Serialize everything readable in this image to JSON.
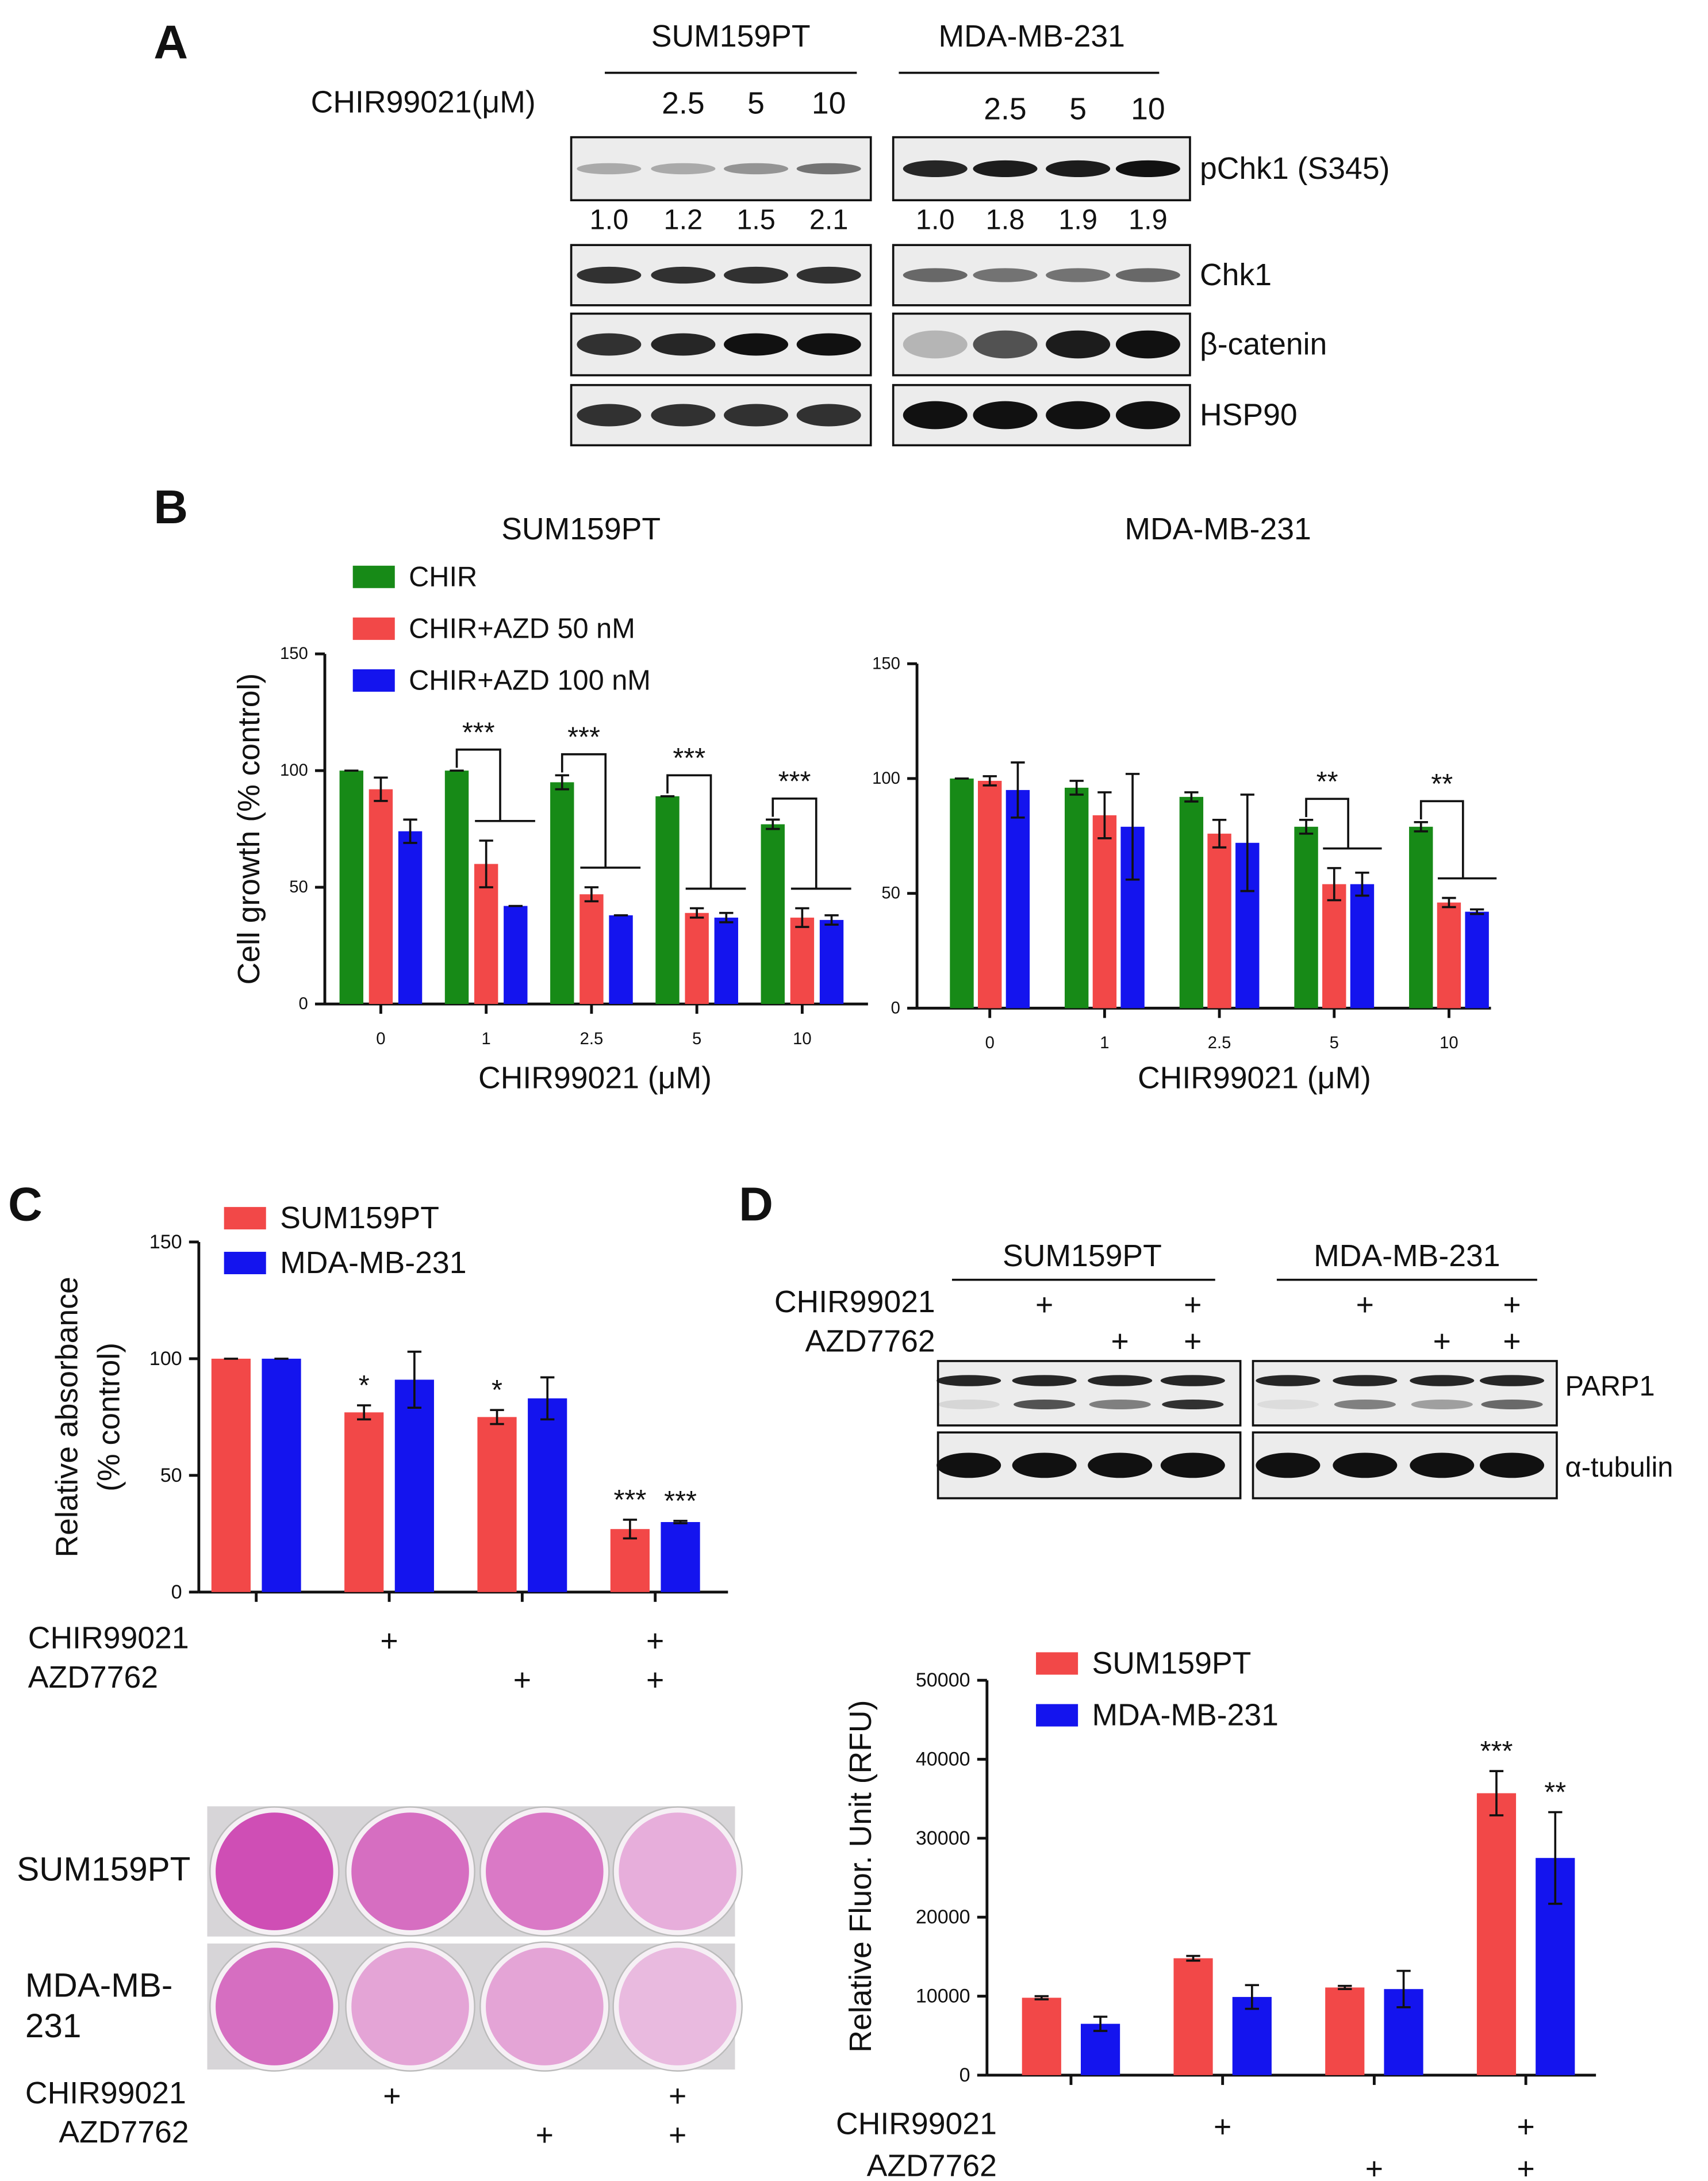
{
  "panel_labels": [
    "A",
    "B",
    "C",
    "D"
  ],
  "western_A": {
    "treatment_label": "CHIR99021(μM)",
    "cell_lines": [
      "SUM159PT",
      "MDA-MB-231"
    ],
    "doses": [
      "2.5",
      "5",
      "10"
    ],
    "rows": [
      "pChk1 (S345)",
      "Chk1",
      "β-catenin",
      "HSP90"
    ],
    "quantification": [
      [
        "1.0",
        "1.2",
        "1.5",
        "2.1"
      ],
      [
        "1.0",
        "1.8",
        "1.9",
        "1.9"
      ]
    ]
  },
  "chart_data": [
    {
      "type": "bar",
      "title": "SUM159PT",
      "xlabel": "CHIR99021 (μM)",
      "ylabel": [
        "Cell growth (% control)"
      ],
      "categories": [
        "0",
        "1",
        "2.5",
        "5",
        "10"
      ],
      "ylim": [
        0,
        150
      ],
      "yticks": [
        0,
        50,
        100,
        150
      ],
      "series": [
        {
          "name": "CHIR",
          "color": "#178a17",
          "values": [
            100,
            100,
            95,
            89,
            77
          ],
          "errors": [
            0,
            0,
            3,
            0,
            2
          ]
        },
        {
          "name": "CHIR+AZD 50 nM",
          "color": "#f24848",
          "values": [
            92,
            60,
            47,
            39,
            37
          ],
          "errors": [
            5,
            10,
            3,
            2,
            4
          ]
        },
        {
          "name": "CHIR+AZD 100 nM",
          "color": "#1414ee",
          "values": [
            74,
            42,
            38,
            37,
            36
          ],
          "errors": [
            5,
            0,
            0,
            2,
            2
          ]
        }
      ],
      "significance": [
        null,
        "***",
        "***",
        "***",
        "***"
      ]
    },
    {
      "type": "bar",
      "title": "MDA-MB-231",
      "xlabel": "CHIR99021 (μM)",
      "categories": [
        "0",
        "1",
        "2.5",
        "5",
        "10"
      ],
      "ylim": [
        0,
        150
      ],
      "yticks": [
        0,
        50,
        100,
        150
      ],
      "series": [
        {
          "color": "#178a17",
          "values": [
            100,
            96,
            92,
            79,
            79
          ],
          "errors": [
            0,
            3,
            2,
            3,
            2
          ]
        },
        {
          "color": "#f24848",
          "values": [
            99,
            84,
            76,
            54,
            46
          ],
          "errors": [
            2,
            10,
            6,
            7,
            2
          ]
        },
        {
          "color": "#1414ee",
          "values": [
            95,
            79,
            72,
            54,
            42
          ],
          "errors": [
            12,
            23,
            21,
            5,
            1
          ]
        }
      ],
      "significance": [
        null,
        null,
        null,
        "**",
        "**"
      ]
    },
    {
      "type": "bar",
      "ylabel": [
        "Relative absorbance",
        "(% control)"
      ],
      "categories": [
        null,
        null,
        null,
        null
      ],
      "ylim": [
        0,
        150
      ],
      "yticks": [
        0,
        50,
        100,
        150
      ],
      "series": [
        {
          "name": "SUM159PT",
          "color": "#f24848",
          "values": [
            100,
            77,
            75,
            27
          ],
          "errors": [
            0,
            3,
            3,
            4
          ],
          "significance": [
            null,
            "*",
            "*",
            "***"
          ]
        },
        {
          "name": "MDA-MB-231",
          "color": "#1414ee",
          "values": [
            100,
            91,
            83,
            30
          ],
          "errors": [
            0,
            12,
            9,
            0.5
          ],
          "significance": [
            null,
            null,
            null,
            "***"
          ]
        }
      ],
      "treatments": [
        {
          "name": "CHIR99021",
          "lanes": [
            null,
            "+",
            null,
            "+"
          ]
        },
        {
          "name": "AZD7762",
          "lanes": [
            null,
            null,
            "+",
            "+"
          ]
        }
      ]
    },
    {
      "type": "bar",
      "ylabel": [
        "Relative Fluor. Unit (RFU)"
      ],
      "categories": [
        null,
        null,
        null,
        null
      ],
      "ylim": [
        0,
        50000
      ],
      "yticks": [
        0,
        10000,
        20000,
        30000,
        40000,
        50000
      ],
      "series": [
        {
          "name": "SUM159PT",
          "color": "#f24848",
          "values": [
            9800,
            14800,
            11100,
            35700
          ],
          "errors": [
            200,
            300,
            200,
            2800
          ],
          "significance": [
            null,
            null,
            null,
            "***"
          ]
        },
        {
          "name": "MDA-MB-231",
          "color": "#1414ee",
          "values": [
            6500,
            9900,
            10900,
            27500
          ],
          "errors": [
            900,
            1500,
            2300,
            5800
          ],
          "significance": [
            null,
            null,
            null,
            "**"
          ]
        }
      ],
      "treatments": [
        {
          "name": "CHIR99021",
          "lanes": [
            null,
            "+",
            null,
            "+"
          ]
        },
        {
          "name": "AZD7762",
          "lanes": [
            null,
            null,
            "+",
            "+"
          ]
        }
      ]
    }
  ],
  "western_D": {
    "cell_lines": [
      "SUM159PT",
      "MDA-MB-231"
    ],
    "treatments": [
      {
        "name": "CHIR99021",
        "lanes": [
          null,
          "+",
          null,
          "+"
        ]
      },
      {
        "name": "AZD7762",
        "lanes": [
          null,
          null,
          "+",
          "+"
        ]
      }
    ],
    "rows": [
      "PARP1",
      "α-tubulin"
    ]
  },
  "colony": {
    "row_labels": [
      [
        "SUM159PT"
      ],
      [
        "MDA-MB-",
        "231"
      ]
    ],
    "treatments": [
      {
        "name": "CHIR99021",
        "lanes": [
          null,
          "+",
          null,
          "+"
        ]
      },
      {
        "name": "AZD7762",
        "lanes": [
          null,
          null,
          "+",
          "+"
        ]
      }
    ]
  }
}
